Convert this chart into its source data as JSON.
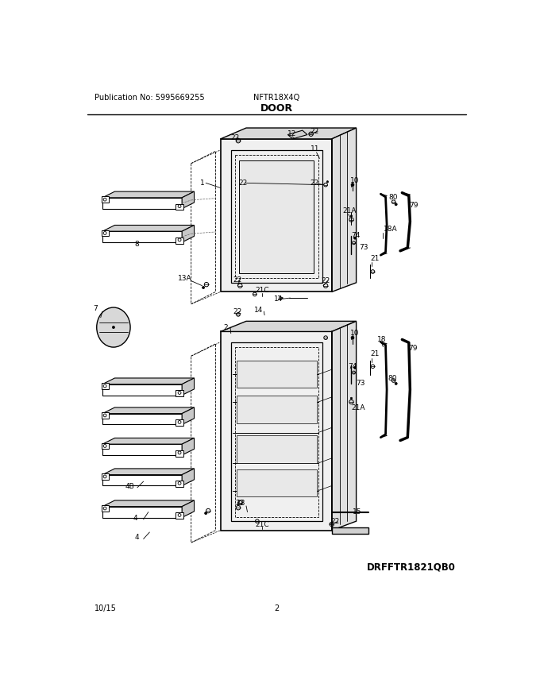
{
  "title": "DOOR",
  "pub_no": "Publication No: 5995669255",
  "model": "NFTR18X4Q",
  "diagram_id": "DRFFTR1821QB0",
  "date": "10/15",
  "page": "2",
  "bg_color": "#ffffff"
}
